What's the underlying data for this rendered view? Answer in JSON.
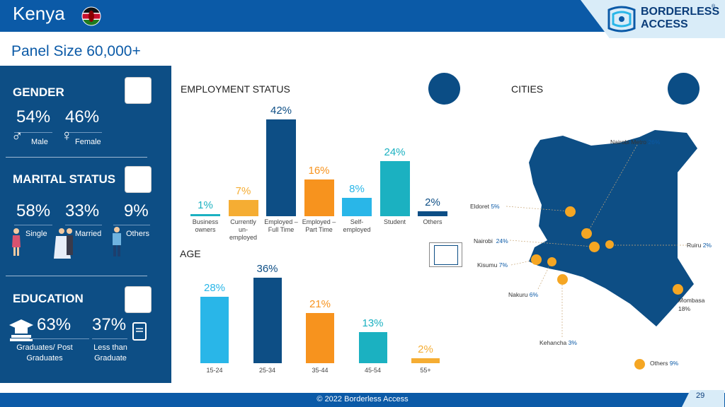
{
  "header": {
    "title": "Kenya",
    "logo_line1": "BORDERLESS",
    "logo_line2": "ACCESS",
    "logo_mark": "®"
  },
  "panel_size": "Panel Size 60,000+",
  "gender": {
    "heading": "GENDER",
    "male_pct": "54%",
    "male_label": "Male",
    "female_pct": "46%",
    "female_label": "Female"
  },
  "marital": {
    "heading": "MARITAL STATUS",
    "items": [
      {
        "pct": "58%",
        "label": "Single"
      },
      {
        "pct": "33%",
        "label": "Married"
      },
      {
        "pct": "9%",
        "label": "Others"
      }
    ]
  },
  "education": {
    "heading": "EDUCATION",
    "items": [
      {
        "pct": "63%",
        "label": "Graduates/ Post Graduates"
      },
      {
        "pct": "37%",
        "label": "Less than Graduate"
      }
    ]
  },
  "employment_heading": "EMPLOYMENT STATUS",
  "age_heading": "AGE",
  "cities_heading": "CITIES",
  "colors": {
    "dark_blue": "#0d4e85",
    "orange": "#f7931e",
    "light_blue": "#29b6e8",
    "teal": "#1bb1c1",
    "gold": "#f5ad33",
    "header_blue": "#0b5aa7"
  },
  "chart_data": [
    {
      "type": "bar",
      "title": "EMPLOYMENT STATUS",
      "categories": [
        "Business owners",
        "Currently un-employed",
        "Employed – Full Time",
        "Employed – Part Time",
        "Self-employed",
        "Student",
        "Others"
      ],
      "values": [
        1,
        7,
        42,
        16,
        8,
        24,
        2
      ],
      "labels": [
        "1%",
        "7%",
        "42%",
        "16%",
        "8%",
        "24%",
        "2%"
      ],
      "colors": [
        "#1bb1c1",
        "#f5ad33",
        "#0d4e85",
        "#f7931e",
        "#29b6e8",
        "#1bb1c1",
        "#0d4e85"
      ]
    },
    {
      "type": "bar",
      "title": "AGE",
      "categories": [
        "15-24",
        "25-34",
        "35-44",
        "45-54",
        "55+"
      ],
      "values": [
        28,
        36,
        21,
        13,
        2
      ],
      "labels": [
        "28%",
        "36%",
        "21%",
        "13%",
        "2%"
      ],
      "colors": [
        "#29b6e8",
        "#0d4e85",
        "#f7931e",
        "#1bb1c1",
        "#f5ad33"
      ]
    }
  ],
  "cities": [
    {
      "name": "Nairobi Metro",
      "pct": "26%"
    },
    {
      "name": "Eldoret",
      "pct": "5%"
    },
    {
      "name": "Nairobi",
      "pct": "24%"
    },
    {
      "name": "Ruiru",
      "pct": "2%"
    },
    {
      "name": "Kisumu",
      "pct": "7%"
    },
    {
      "name": "Nakuru",
      "pct": "6%"
    },
    {
      "name": "Mombasa",
      "pct": "18%"
    },
    {
      "name": "Kehancha",
      "pct": "3%"
    },
    {
      "name": "Others",
      "pct": "9%"
    }
  ],
  "footer": "© 2022 Borderless Access",
  "page_number": "29"
}
